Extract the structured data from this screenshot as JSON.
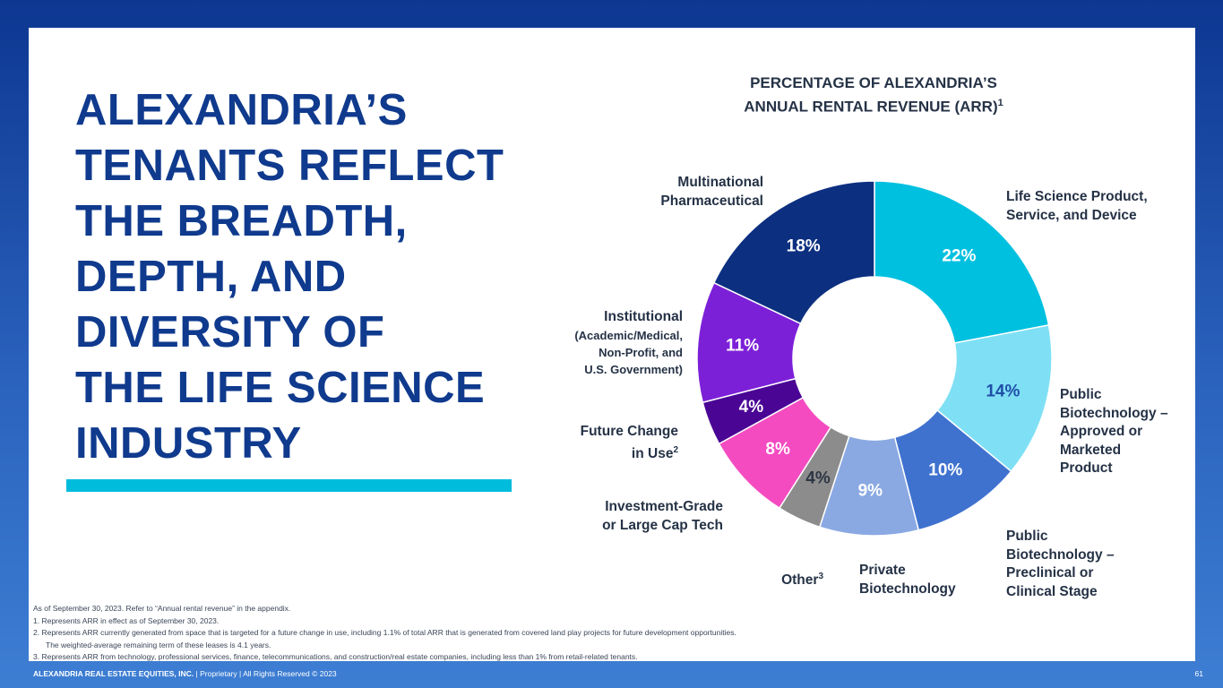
{
  "headline": {
    "lines": [
      "ALEXANDRIA’S",
      "TENANTS REFLECT",
      "THE BREADTH,",
      "DEPTH, AND",
      "DIVERSITY OF",
      "THE LIFE SCIENCE",
      "INDUSTRY"
    ]
  },
  "chart_data": {
    "type": "pie",
    "title_lines": [
      "PERCENTAGE OF ALEXANDRIA’S",
      "ANNUAL RENTAL REVENUE (ARR)"
    ],
    "title_superscript": "1",
    "donut": true,
    "slices": [
      {
        "label_lines": [
          "Life Science Product,",
          "Service, and Device"
        ],
        "value": 22,
        "display": "22%",
        "color": "#00c0e0",
        "text_color": "#ffffff"
      },
      {
        "label_lines": [
          "Public",
          "Biotechnology –",
          "Approved or",
          "Marketed",
          "Product"
        ],
        "value": 14,
        "display": "14%",
        "color": "#7fe0f5",
        "text_color": "#1f4fa8"
      },
      {
        "label_lines": [
          "Public",
          "Biotechnology –",
          "Preclinical or",
          "Clinical Stage"
        ],
        "value": 10,
        "display": "10%",
        "color": "#3f72cf",
        "text_color": "#ffffff"
      },
      {
        "label_lines": [
          "Private",
          "Biotechnology"
        ],
        "value": 9,
        "display": "9%",
        "color": "#8aa9e3",
        "text_color": "#ffffff"
      },
      {
        "label_lines": [
          "Other"
        ],
        "label_superscript": "3",
        "value": 4,
        "display": "4%",
        "color": "#8c8c8c",
        "text_color": "#2d3644"
      },
      {
        "label_lines": [
          "Investment-Grade",
          "or Large Cap Tech"
        ],
        "value": 8,
        "display": "8%",
        "color": "#f54bc1",
        "text_color": "#ffffff"
      },
      {
        "label_lines": [
          "Future Change",
          "in Use"
        ],
        "label_superscript": "2",
        "value": 4,
        "display": "4%",
        "color": "#4a0595",
        "text_color": "#ffffff"
      },
      {
        "label_lines": [
          "Institutional"
        ],
        "label_sub_lines": [
          "(Academic/Medical,",
          "Non-Profit, and",
          "U.S. Government)"
        ],
        "value": 11,
        "display": "11%",
        "color": "#7c20d8",
        "text_color": "#ffffff"
      },
      {
        "label_lines": [
          "Multinational",
          "Pharmaceutical"
        ],
        "value": 18,
        "display": "18%",
        "color": "#0c2f80",
        "text_color": "#ffffff"
      }
    ]
  },
  "footnotes": [
    "As of September 30, 2023. Refer to “Annual rental revenue” in the appendix.",
    "1.   Represents ARR in effect as of September 30, 2023.",
    "2.   Represents ARR currently generated from space that is targeted for a future change in use, including 1.1% of total ARR that is generated from covered land play projects for future development opportunities.",
    "      The weighted-average remaining term of these leases is 4.1 years.",
    "3.   Represents ARR from technology, professional services, finance, telecommunications, and construction/real estate companies, including less than 1% from retail-related tenants."
  ],
  "footer": {
    "company": "ALEXANDRIA REAL ESTATE EQUITIES, INC.",
    "rights": " | Proprietary | All Rights Reserved © 2023",
    "page": "61"
  }
}
